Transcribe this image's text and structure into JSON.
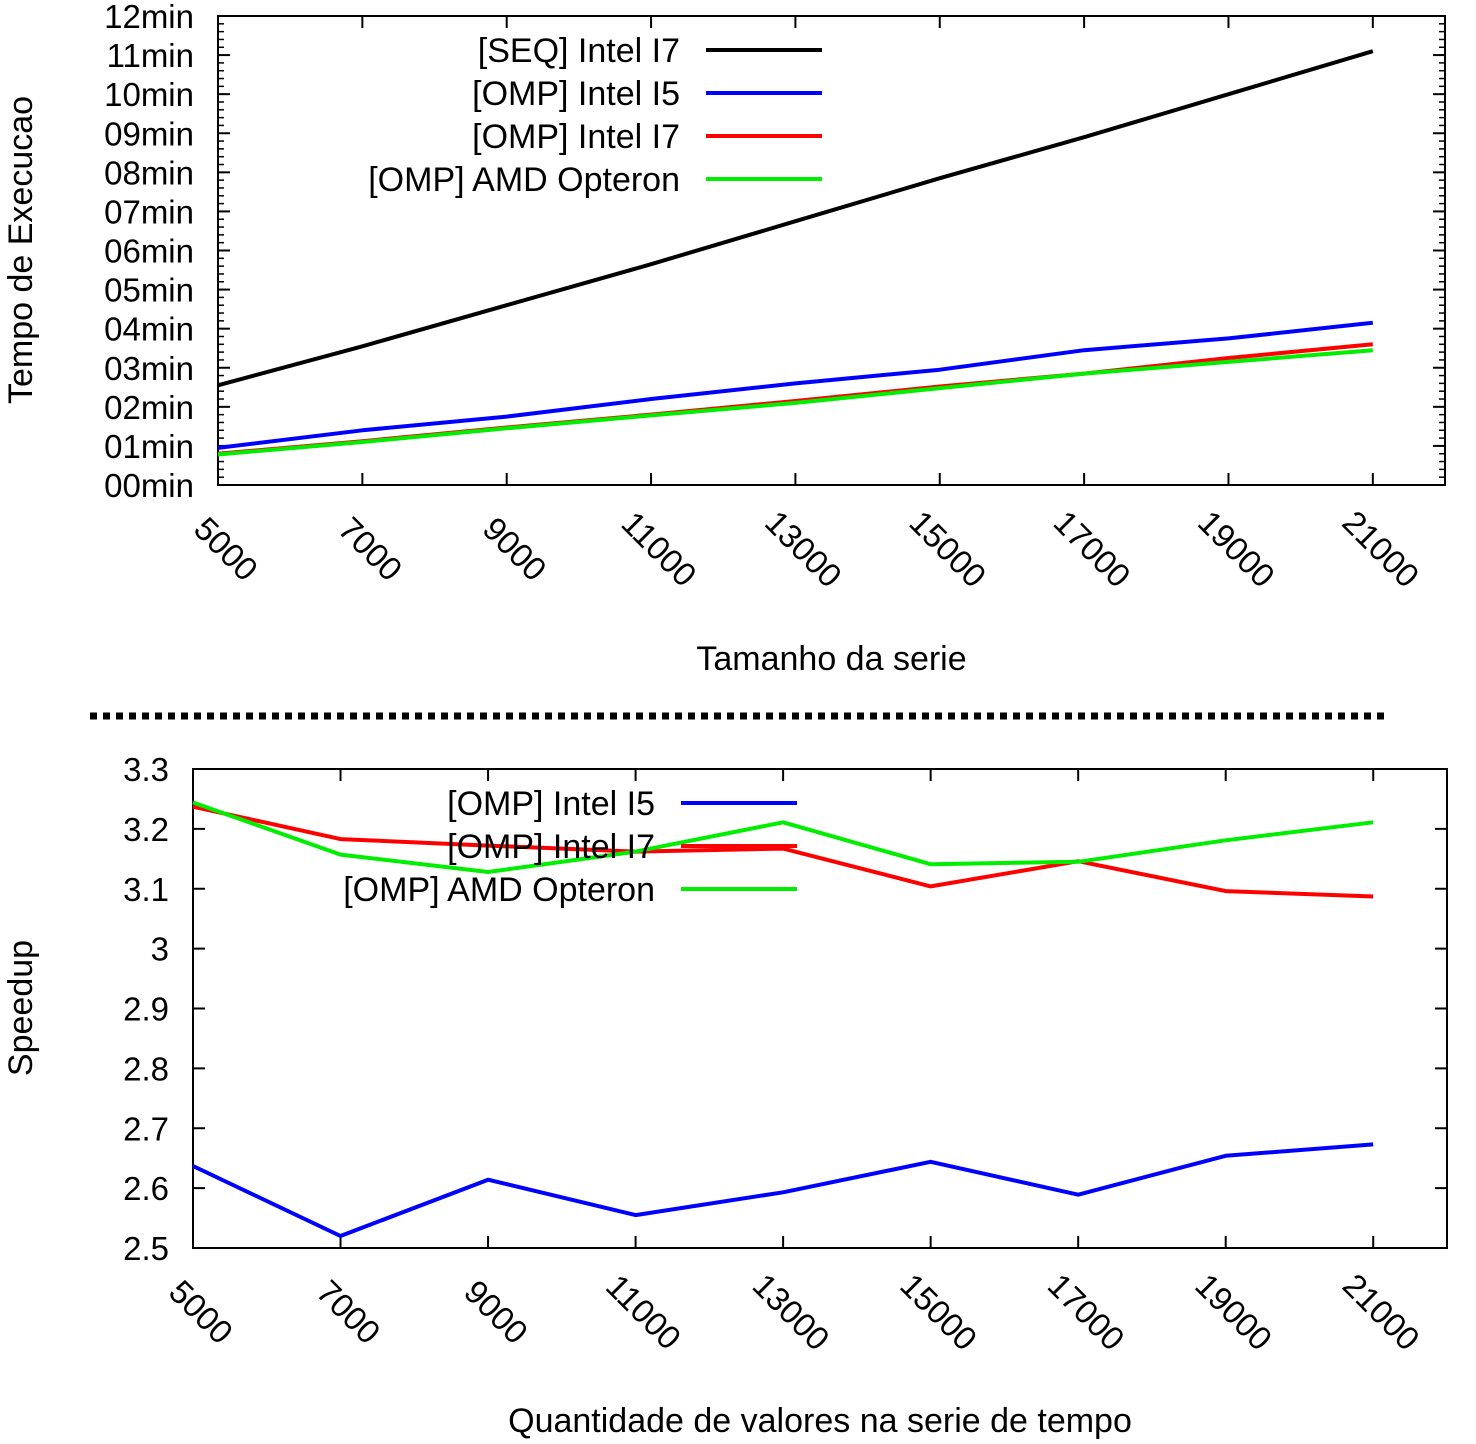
{
  "chart_data": [
    {
      "type": "line",
      "xlabel": "Tamanho da serie",
      "ylabel": "Tempo de Execucao",
      "x": [
        5000,
        7000,
        9000,
        11000,
        13000,
        15000,
        17000,
        19000,
        21000
      ],
      "xticks": [
        "5000",
        "7000",
        "9000",
        "11000",
        "13000",
        "15000",
        "17000",
        "19000",
        "21000"
      ],
      "xlim": [
        5000,
        22000
      ],
      "ylim": [
        0,
        12
      ],
      "y_unit": "min",
      "yticks": [
        "00min",
        "01min",
        "02min",
        "03min",
        "04min",
        "05min",
        "06min",
        "07min",
        "08min",
        "09min",
        "10min",
        "11min",
        "12min"
      ],
      "grid": false,
      "legend_position": "top-left",
      "series": [
        {
          "name": "[SEQ] Intel I7",
          "color": "#000000",
          "values": [
            2.55,
            3.55,
            4.6,
            5.65,
            6.75,
            7.85,
            8.9,
            10.0,
            11.1
          ]
        },
        {
          "name": "[OMP] Intel I5",
          "color": "#0000ff",
          "values": [
            0.95,
            1.4,
            1.75,
            2.2,
            2.6,
            2.95,
            3.45,
            3.75,
            4.15
          ]
        },
        {
          "name": "[OMP] Intel I7",
          "color": "#ff0000",
          "values": [
            0.8,
            1.12,
            1.47,
            1.8,
            2.15,
            2.52,
            2.85,
            3.25,
            3.6
          ]
        },
        {
          "name": "[OMP] AMD Opteron",
          "color": "#00ee00",
          "values": [
            0.78,
            1.1,
            1.45,
            1.78,
            2.1,
            2.48,
            2.85,
            3.15,
            3.45
          ]
        }
      ]
    },
    {
      "type": "line",
      "xlabel": "Quantidade de valores na serie de tempo",
      "ylabel": "Speedup",
      "x": [
        5000,
        7000,
        9000,
        11000,
        13000,
        15000,
        17000,
        19000,
        21000
      ],
      "xticks": [
        "5000",
        "7000",
        "9000",
        "11000",
        "13000",
        "15000",
        "17000",
        "19000",
        "21000"
      ],
      "xlim": [
        5000,
        22000
      ],
      "ylim": [
        2.5,
        3.3
      ],
      "yticks": [
        "2.5",
        "2.6",
        "2.7",
        "2.8",
        "2.9",
        "3",
        "3.1",
        "3.2",
        "3.3"
      ],
      "grid": false,
      "legend_position": "top-left",
      "series": [
        {
          "name": "[OMP] Intel I5",
          "color": "#0000ff",
          "values": [
            2.637,
            2.52,
            2.614,
            2.555,
            2.593,
            2.644,
            2.589,
            2.654,
            2.673
          ]
        },
        {
          "name": "[OMP] Intel I7",
          "color": "#ff0000",
          "values": [
            3.237,
            3.183,
            3.172,
            3.162,
            3.167,
            3.104,
            3.146,
            3.096,
            3.087
          ]
        },
        {
          "name": "[OMP] AMD Opteron",
          "color": "#00ee00",
          "values": [
            3.244,
            3.157,
            3.128,
            3.162,
            3.211,
            3.141,
            3.145,
            3.181,
            3.211
          ]
        }
      ]
    }
  ]
}
